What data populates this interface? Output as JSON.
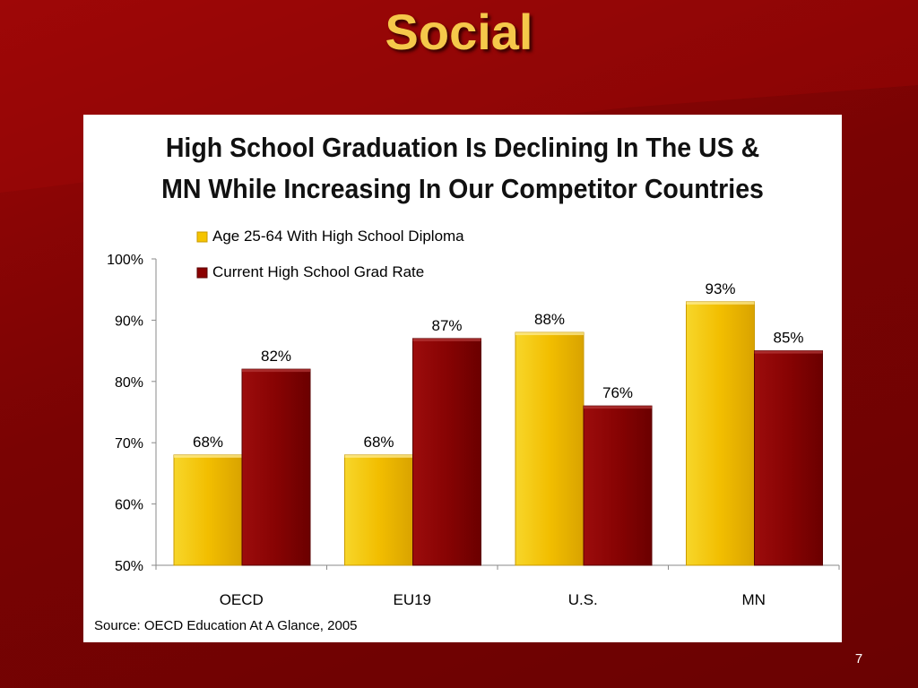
{
  "slide": {
    "title": "Social",
    "page_number": "7",
    "source": "Source: OECD Education At A Glance, 2005",
    "colors": {
      "background": "#7a0303",
      "title": "#f5c84a",
      "panel": "#ffffff"
    }
  },
  "chart_data": {
    "type": "bar",
    "title": "High School Graduation Is Declining In The US & MN While Increasing In Our Competitor Countries",
    "title_lines": [
      "High School Graduation Is Declining In The US &",
      "MN While Increasing In Our Competitor Countries"
    ],
    "categories": [
      "OECD",
      "EU19",
      "U.S.",
      "MN"
    ],
    "series": [
      {
        "name": "Age 25-64 With High School Diploma",
        "values": [
          68,
          68,
          88,
          93
        ],
        "labels": [
          "68%",
          "68%",
          "88%",
          "93%"
        ],
        "color": "#f5c400"
      },
      {
        "name": "Current High School Grad Rate",
        "values": [
          82,
          87,
          76,
          85
        ],
        "labels": [
          "82%",
          "87%",
          "76%",
          "85%"
        ],
        "color": "#8b0000"
      }
    ],
    "yticks": [
      50,
      60,
      70,
      80,
      90,
      100
    ],
    "ytick_labels": [
      "50%",
      "60%",
      "70%",
      "80%",
      "90%",
      "100%"
    ],
    "ylim": [
      50,
      100
    ],
    "xlabel": "",
    "ylabel": "",
    "grid": false,
    "legend_position": "top-left"
  }
}
